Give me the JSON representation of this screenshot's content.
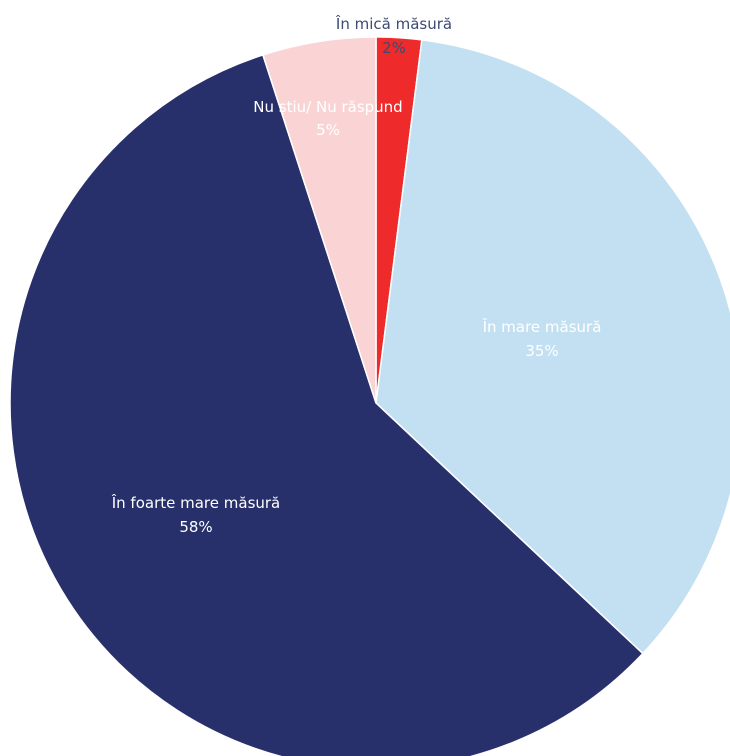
{
  "chart_data": {
    "type": "pie",
    "title": "",
    "slices": [
      {
        "label": "În mică măsură",
        "value": 2,
        "value_label": "2%",
        "color": "#ee2a2a",
        "label_color": "#3d4a73",
        "value_color": "#3d4a73"
      },
      {
        "label": "În mare măsură",
        "value": 35,
        "value_label": "35%",
        "color": "#c2e0f2",
        "label_color": "#ffffff",
        "value_color": "#ffffff"
      },
      {
        "label": "În foarte mare măsură",
        "value": 58,
        "value_label": "58%",
        "color": "#27306b",
        "label_color": "#ffffff",
        "value_color": "#ffffff"
      },
      {
        "label": "Nu știu/ Nu răspund",
        "value": 5,
        "value_label": "5%",
        "color": "#fad4d4",
        "label_color": "#ffffff",
        "value_color": "#ffffff"
      }
    ]
  }
}
